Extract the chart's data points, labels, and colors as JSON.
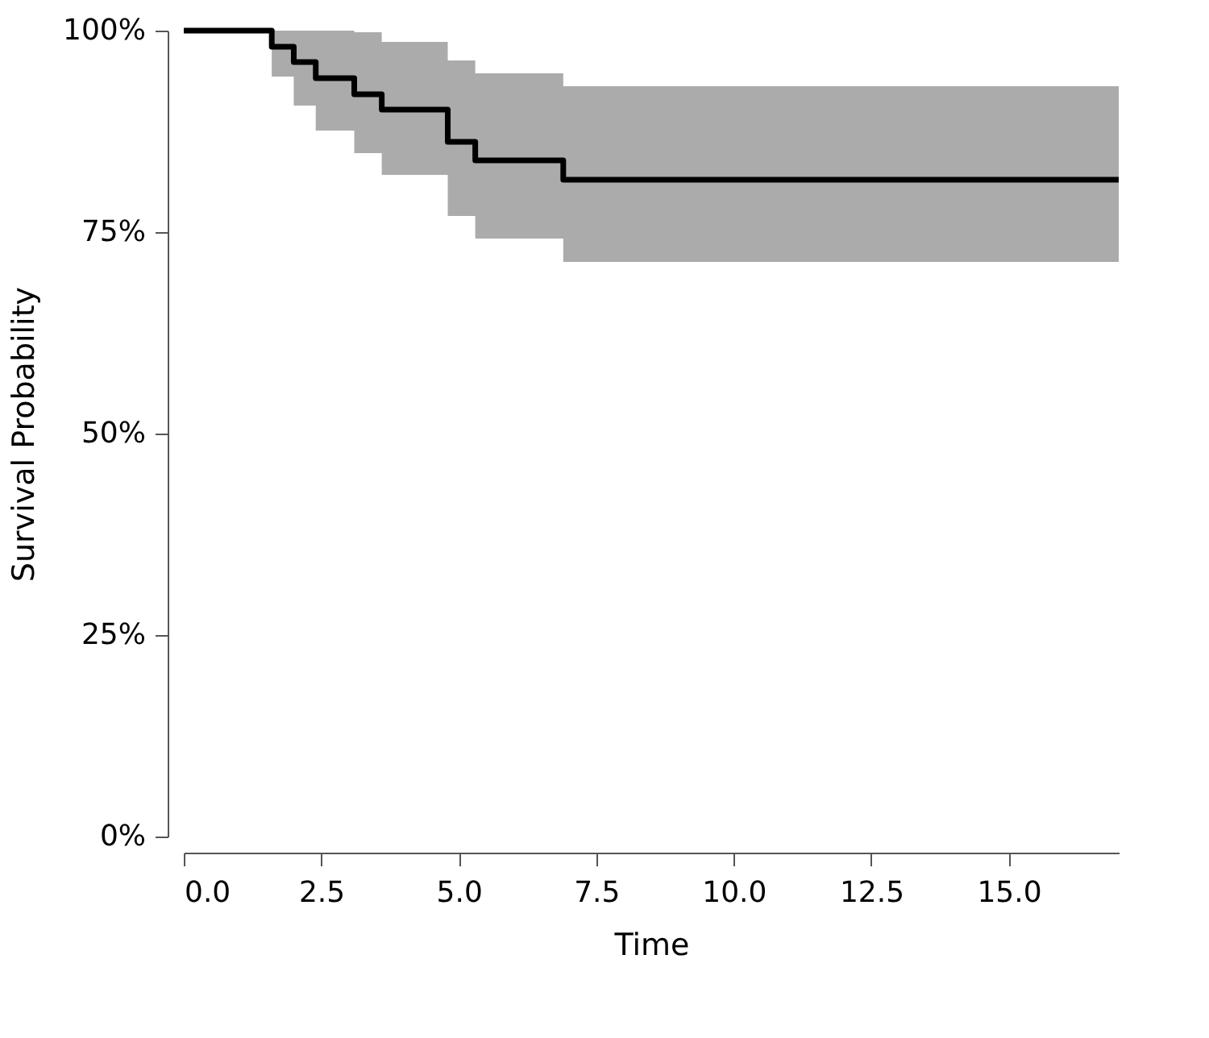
{
  "chart_data": {
    "type": "step",
    "xlabel": "Time",
    "ylabel": "Survival Probability",
    "xlim": [
      0,
      17
    ],
    "ylim": [
      0,
      100
    ],
    "xticks": [
      {
        "value": 0,
        "label": "0.0"
      },
      2.5,
      {
        "value": 5,
        "label": "5.0"
      },
      7.5,
      {
        "value": 10,
        "label": "10.0"
      },
      12.5,
      {
        "value": 15,
        "label": "15.0"
      }
    ],
    "yticks": [
      {
        "value": 0,
        "label": "0%"
      },
      {
        "value": 25,
        "label": "25%"
      },
      {
        "value": 50,
        "label": "50%"
      },
      {
        "value": 75,
        "label": "75%"
      },
      {
        "value": 100,
        "label": "100%"
      }
    ],
    "grid": false,
    "line_style": "solid",
    "marker": "none",
    "series": [
      {
        "color": "#000000",
        "x": [
          0,
          1.6,
          2.0,
          2.4,
          3.1,
          3.6,
          4.8,
          5.3,
          6.9,
          17
        ],
        "values": [
          100,
          98.0,
          96.1,
          94.1,
          92.1,
          90.2,
          86.2,
          83.9,
          81.5,
          81.5
        ],
        "lower": [
          100,
          94.3,
          90.7,
          87.6,
          84.8,
          82.1,
          77.0,
          74.2,
          71.3,
          71.3
        ],
        "upper": [
          100,
          100,
          100,
          100,
          99.8,
          98.6,
          96.3,
          94.7,
          93.1,
          93.1
        ]
      }
    ]
  }
}
